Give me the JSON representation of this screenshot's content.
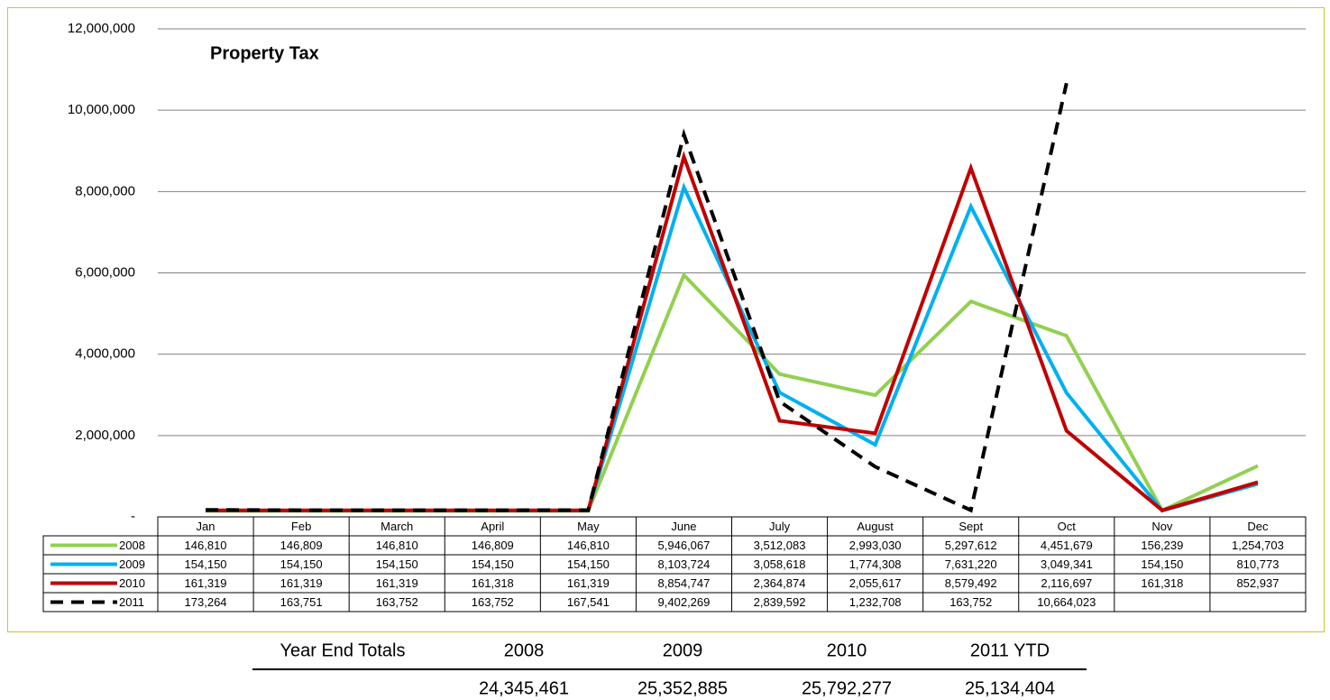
{
  "chart_data": {
    "type": "line",
    "title": "Property Tax",
    "categories": [
      "Jan",
      "Feb",
      "March",
      "April",
      "May",
      "June",
      "July",
      "August",
      "Sept",
      "Oct",
      "Nov",
      "Dec"
    ],
    "series": [
      {
        "name": "2008",
        "color": "#92d050",
        "style": "solid",
        "values": [
          146810,
          146809,
          146810,
          146809,
          146810,
          5946067,
          3512083,
          2993030,
          5297612,
          4451679,
          156239,
          1254703
        ],
        "value_labels": [
          "146,810",
          "146,809",
          "146,810",
          "146,809",
          "146,810",
          "5,946,067",
          "3,512,083",
          "2,993,030",
          "5,297,612",
          "4,451,679",
          "156,239",
          "1,254,703"
        ]
      },
      {
        "name": "2009",
        "color": "#00b0f0",
        "style": "solid",
        "values": [
          154150,
          154150,
          154150,
          154150,
          154150,
          8103724,
          3058618,
          1774308,
          7631220,
          3049341,
          154150,
          810773
        ],
        "value_labels": [
          "154,150",
          "154,150",
          "154,150",
          "154,150",
          "154,150",
          "8,103,724",
          "3,058,618",
          "1,774,308",
          "7,631,220",
          "3,049,341",
          "154,150",
          "810,773"
        ]
      },
      {
        "name": "2010",
        "color": "#c00000",
        "style": "solid",
        "values": [
          161319,
          161319,
          161319,
          161318,
          161319,
          8854747,
          2364874,
          2055617,
          8579492,
          2116697,
          161318,
          852937
        ],
        "value_labels": [
          "161,319",
          "161,319",
          "161,319",
          "161,318",
          "161,319",
          "8,854,747",
          "2,364,874",
          "2,055,617",
          "8,579,492",
          "2,116,697",
          "161,318",
          "852,937"
        ]
      },
      {
        "name": "2011",
        "color": "#000000",
        "style": "dashed",
        "values": [
          173264,
          163751,
          163752,
          163752,
          167541,
          9402269,
          2839592,
          1232708,
          163752,
          10664023,
          null,
          null
        ],
        "value_labels": [
          "173,264",
          "163,751",
          "163,752",
          "163,752",
          "167,541",
          "9,402,269",
          "2,839,592",
          "1,232,708",
          "163,752",
          "10,664,023",
          null,
          null
        ]
      }
    ],
    "ylim": [
      0,
      12000000
    ],
    "yticks": [
      {
        "value": 0,
        "label": "-"
      },
      {
        "value": 2000000,
        "label": "2,000,000"
      },
      {
        "value": 4000000,
        "label": "4,000,000"
      },
      {
        "value": 6000000,
        "label": "6,000,000"
      },
      {
        "value": 8000000,
        "label": "8,000,000"
      },
      {
        "value": 10000000,
        "label": "10,000,000"
      },
      {
        "value": 12000000,
        "label": "12,000,000"
      }
    ],
    "grid": true
  },
  "totals": {
    "title": "Year End Totals",
    "columns": [
      "2008",
      "2009",
      "2010",
      "2011 YTD"
    ],
    "values": [
      "24,345,461",
      "25,352,885",
      "25,792,277",
      "25,134,404"
    ]
  }
}
